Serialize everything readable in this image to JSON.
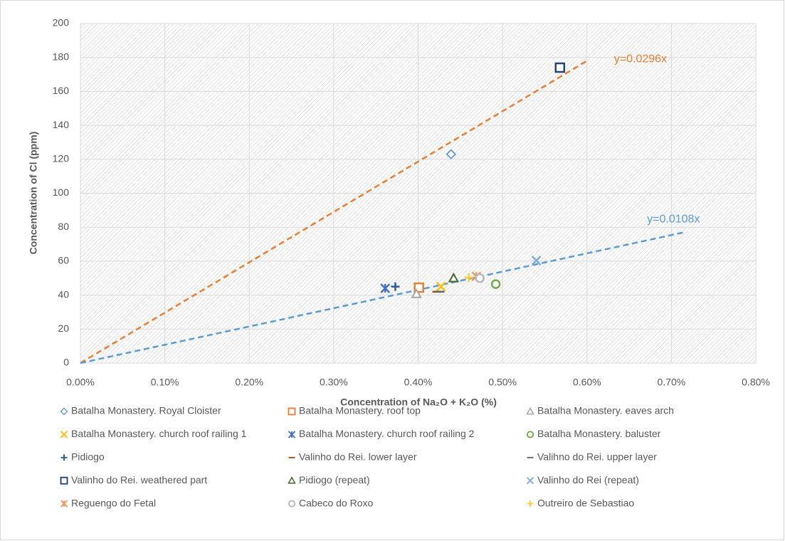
{
  "chart_data": {
    "type": "scatter",
    "xlabel": "Concentration of Na₂O + K₂O (%)",
    "ylabel": "Concentration of Cl (ppm)",
    "xlim": [
      0,
      0.8
    ],
    "xticks": [
      {
        "value": 0,
        "label": "0.00%"
      },
      {
        "value": 0.1,
        "label": "0.10%"
      },
      {
        "value": 0.2,
        "label": "0.20%"
      },
      {
        "value": 0.3,
        "label": "0.30%"
      },
      {
        "value": 0.4,
        "label": "0.40%"
      },
      {
        "value": 0.5,
        "label": "0.50%"
      },
      {
        "value": 0.6,
        "label": "0.60%"
      },
      {
        "value": 0.7,
        "label": "0.70%"
      },
      {
        "value": 0.8,
        "label": "0.80%"
      }
    ],
    "ylim": [
      0,
      200
    ],
    "yticks": [
      0,
      20,
      40,
      60,
      80,
      100,
      120,
      140,
      160,
      180,
      200
    ],
    "grid": true,
    "legend": "bottom",
    "series": [
      {
        "name": "Batalha Monastery. Royal Cloister",
        "color": "#5b9bd5",
        "marker": "diamond",
        "x": [
          0.439
        ],
        "values": [
          123
        ]
      },
      {
        "name": "Batalha Monastery. roof top",
        "color": "#ed7d31",
        "marker": "square",
        "x": [
          0.401
        ],
        "values": [
          44.4
        ]
      },
      {
        "name": "Batalha Monastery. eaves arch",
        "color": "#a5a5a5",
        "marker": "triangle",
        "x": [
          0.398
        ],
        "values": [
          40.7
        ]
      },
      {
        "name": "Batalha Monastery. church roof railing 1",
        "color": "#ffc000",
        "marker": "x",
        "x": [
          0.427
        ],
        "values": [
          45
        ]
      },
      {
        "name": "Batalha Monastery. church roof railing 2",
        "color": "#4472c4",
        "marker": "star",
        "x": [
          0.361
        ],
        "values": [
          44
        ]
      },
      {
        "name": "Batalha Monastery. baluster",
        "color": "#70ad47",
        "marker": "circle",
        "x": [
          0.492
        ],
        "values": [
          46.5
        ]
      },
      {
        "name": "Pidiogo",
        "color": "#255e91",
        "marker": "plus",
        "x": [
          0.373
        ],
        "values": [
          45
        ]
      },
      {
        "name": "Valinho do Rei. lower layer",
        "color": "#9e480e",
        "marker": "dash",
        "x": [
          0.422
        ],
        "values": [
          42
        ]
      },
      {
        "name": "Valihno do Rei. upper layer",
        "color": "#636363",
        "marker": "dash",
        "x": [
          0.426
        ],
        "values": [
          42
        ]
      },
      {
        "name": "Valinho do Rei. weathered part",
        "color": "#264478",
        "marker": "square",
        "x": [
          0.568
        ],
        "values": [
          174
        ]
      },
      {
        "name": "Pidiogo (repeat)",
        "color": "#43682b",
        "marker": "triangle",
        "x": [
          0.442
        ],
        "values": [
          50
        ]
      },
      {
        "name": "Valinho do Rei (repeat)",
        "color": "#7cafdd",
        "marker": "x",
        "x": [
          0.54
        ],
        "values": [
          60.4
        ]
      },
      {
        "name": "Reguengo do Fetal",
        "color": "#f1975a",
        "marker": "star",
        "x": [
          0.469
        ],
        "values": [
          51
        ]
      },
      {
        "name": "Cabeco do Roxo",
        "color": "#b7b7b7",
        "marker": "circle",
        "x": [
          0.473
        ],
        "values": [
          50
        ]
      },
      {
        "name": "Outreiro de Sebastiao",
        "color": "#ffcd33",
        "marker": "plus",
        "x": [
          0.46
        ],
        "values": [
          50.3
        ]
      }
    ],
    "trendlines": [
      {
        "label": "y=0.0296x",
        "color": "#ed7d31",
        "x": [
          0,
          0.6
        ],
        "y": [
          0,
          178
        ]
      },
      {
        "label": "y=0.0108x",
        "color": "#5b9bd5",
        "x": [
          0,
          0.715
        ],
        "y": [
          0,
          77
        ]
      }
    ]
  }
}
